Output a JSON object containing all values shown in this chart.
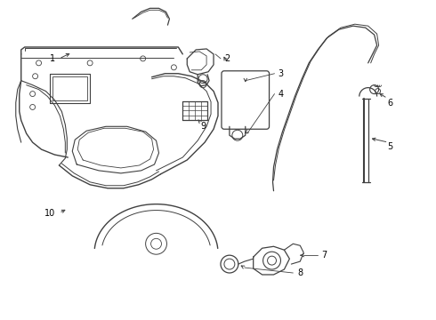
{
  "background_color": "#ffffff",
  "line_color": "#404040",
  "label_color": "#000000",
  "fig_width": 4.9,
  "fig_height": 3.6,
  "dpi": 100
}
